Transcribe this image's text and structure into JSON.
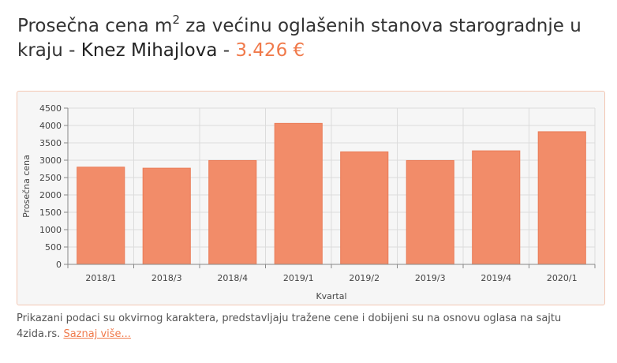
{
  "header": {
    "title_before_sup": "Prosečna cena m",
    "title_sup": "2",
    "title_after_sup": " za većinu oglašenih stanova starogradnje u kraju - ",
    "location": "Knez Mihajlova",
    "separator": " - ",
    "price": "3.426 €"
  },
  "colors": {
    "accent": "#f07a4b",
    "bar": "#f28c69",
    "bar_stroke": "#ea7c57",
    "panel_background": "#f6f6f6",
    "panel_border": "#f3c7b3",
    "grid": "#dcdcdc"
  },
  "chart_data": {
    "type": "bar",
    "categories": [
      "2018/1",
      "2018/3",
      "2018/4",
      "2019/1",
      "2019/2",
      "2019/3",
      "2019/4",
      "2020/1"
    ],
    "values": [
      2800,
      2770,
      2990,
      4060,
      3240,
      2990,
      3270,
      3820
    ],
    "xlabel": "Kvartal",
    "ylabel": "Prosečna cena",
    "ylim": [
      0,
      4500
    ],
    "yticks": [
      0,
      500,
      1000,
      1500,
      2000,
      2500,
      3000,
      3500,
      4000,
      4500
    ],
    "grid": true,
    "legend": "none"
  },
  "footer": {
    "note_text": "Prikazani podaci su okvirnog karaktera, predstavljaju tražene cene i dobijeni su na osnovu oglasa na sajtu 4zida.rs. ",
    "more_link": "Saznaj više..."
  }
}
